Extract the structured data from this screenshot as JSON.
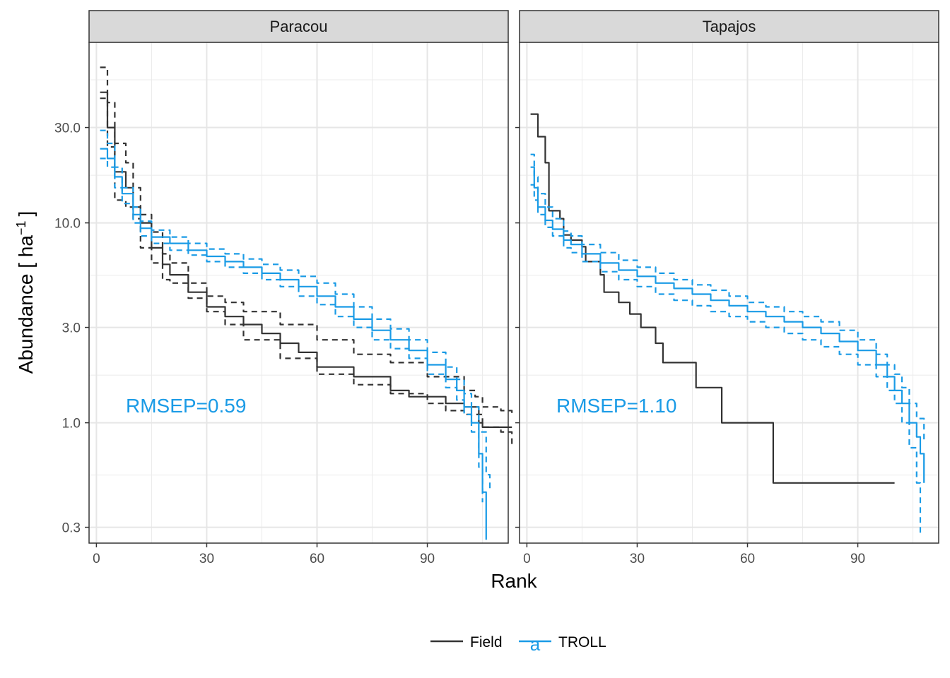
{
  "chart_data": {
    "type": "line",
    "facet_variable": "site",
    "y_scale": "log10",
    "grid": true,
    "legend_position": "bottom",
    "xlabel": "Rank",
    "ylabel": "Abundance [ ha",
    "ylabel_superscript": "−1",
    "ylabel_close": "]",
    "xlim": [
      -2,
      112
    ],
    "ylim": [
      0.25,
      80
    ],
    "x_ticks": [
      0,
      30,
      60,
      90
    ],
    "x_tick_labels": [
      "0",
      "30",
      "60",
      "90"
    ],
    "y_ticks": [
      0.3,
      1.0,
      3.0,
      10.0,
      30.0
    ],
    "y_tick_labels": [
      "0.3",
      "1.0",
      "3.0",
      "10.0",
      "30.0"
    ],
    "legend": [
      {
        "name": "Field",
        "color": "#333333",
        "glyph": ""
      },
      {
        "name": "TROLL",
        "color": "#1a9be6",
        "glyph": "a"
      }
    ],
    "panels": [
      {
        "facet": "Paracou",
        "annotation": "RMSEP=0.59",
        "series": [
          {
            "name": "Field",
            "style": "solid",
            "x": [
              1,
              3,
              5,
              8,
              10,
              12,
              15,
              18,
              20,
              25,
              30,
              35,
              40,
              45,
              50,
              55,
              60,
              70,
              80,
              85,
              95,
              100,
              103,
              104,
              105,
              110,
              113
            ],
            "y": [
              45,
              30,
              18,
              15,
              12,
              10,
              7.5,
              6.2,
              5.5,
              4.5,
              3.8,
              3.4,
              3.1,
              2.8,
              2.5,
              2.25,
              1.9,
              1.7,
              1.45,
              1.35,
              1.25,
              1.2,
              1.2,
              1.0,
              0.95,
              0.95,
              0.95
            ]
          },
          {
            "name": "Field",
            "style": "dashed",
            "x": [
              1,
              3,
              5,
              8,
              10,
              12,
              15,
              18,
              20,
              25,
              30,
              35,
              40,
              50,
              60,
              70,
              80,
              90,
              100,
              103,
              105,
              110,
              113
            ],
            "y": [
              60,
              40,
              25,
              20,
              15,
              11,
              9,
              7,
              6.3,
              5,
              4.3,
              4,
              3.6,
              3.1,
              2.6,
              2.2,
              2.0,
              1.7,
              1.45,
              1.35,
              1.2,
              1.15,
              1.1
            ]
          },
          {
            "name": "Field",
            "style": "dashed",
            "x": [
              1,
              3,
              5,
              8,
              10,
              12,
              15,
              18,
              20,
              25,
              30,
              35,
              40,
              50,
              60,
              70,
              80,
              90,
              95,
              100,
              103,
              105,
              110,
              113
            ],
            "y": [
              42,
              24,
              13,
              12,
              10.5,
              7.5,
              6.3,
              5.2,
              5,
              4.2,
              3.6,
              3.1,
              2.6,
              2.1,
              1.75,
              1.55,
              1.4,
              1.25,
              1.15,
              1.1,
              1.1,
              0.95,
              0.9,
              0.78
            ]
          },
          {
            "name": "TROLL",
            "style": "solid",
            "x": [
              1,
              3,
              5,
              7,
              10,
              12,
              15,
              20,
              25,
              30,
              35,
              40,
              45,
              50,
              55,
              60,
              65,
              70,
              75,
              80,
              85,
              90,
              95,
              98,
              100,
              102,
              104,
              105,
              106
            ],
            "y": [
              23.5,
              21,
              17,
              14,
              11,
              9.4,
              8.5,
              7.9,
              7.3,
              6.8,
              6.4,
              6,
              5.6,
              5.2,
              4.8,
              4.3,
              3.8,
              3.3,
              2.9,
              2.6,
              2.3,
              1.95,
              1.65,
              1.45,
              1.2,
              1.0,
              0.7,
              0.45,
              0.26
            ]
          },
          {
            "name": "TROLL",
            "style": "dashed",
            "x": [
              1,
              3,
              5,
              7,
              10,
              12,
              15,
              20,
              25,
              30,
              35,
              40,
              45,
              50,
              55,
              60,
              65,
              70,
              75,
              80,
              85,
              90,
              95,
              98,
              100,
              102,
              104,
              106,
              107
            ],
            "y": [
              29,
              25,
              19,
              15,
              12,
              10.2,
              9.2,
              8.5,
              7.9,
              7.4,
              7,
              6.6,
              6.2,
              5.8,
              5.4,
              5,
              4.4,
              3.8,
              3.3,
              2.95,
              2.6,
              2.25,
              1.9,
              1.65,
              1.4,
              1.2,
              0.9,
              0.55,
              0.45
            ]
          },
          {
            "name": "TROLL",
            "style": "dashed",
            "x": [
              1,
              3,
              5,
              7,
              10,
              12,
              15,
              20,
              25,
              30,
              35,
              40,
              45,
              50,
              55,
              60,
              65,
              70,
              75,
              80,
              85,
              90,
              95,
              98,
              100,
              102,
              104,
              105
            ],
            "y": [
              21,
              19,
              15,
              12.5,
              10,
              8.6,
              7.9,
              7.3,
              6.9,
              6.4,
              6,
              5.6,
              5.2,
              4.8,
              4.3,
              3.9,
              3.4,
              3,
              2.6,
              2.35,
              2.1,
              1.75,
              1.5,
              1.3,
              1.1,
              0.9,
              0.6,
              0.4
            ]
          }
        ]
      },
      {
        "facet": "Tapajos",
        "annotation": "RMSEP=1.10",
        "series": [
          {
            "name": "Field",
            "style": "solid",
            "x": [
              1,
              3,
              5,
              6,
              7,
              9,
              10,
              12,
              15,
              16,
              19,
              20,
              21,
              22,
              24,
              25,
              27,
              28,
              30,
              31,
              32,
              33,
              35,
              36,
              37,
              39,
              40,
              45,
              46,
              47,
              48,
              52,
              53,
              54,
              60,
              65,
              66,
              67,
              68,
              80,
              95,
              100
            ],
            "y": [
              35,
              27,
              20,
              11.5,
              11.5,
              10.5,
              8.7,
              8.2,
              7.6,
              6.4,
              6.4,
              5.5,
              4.5,
              4.5,
              4.5,
              4.0,
              4.0,
              3.5,
              3.5,
              3.0,
              3.0,
              3.0,
              2.5,
              2.5,
              2.0,
              2.0,
              2.0,
              2.0,
              1.5,
              1.5,
              1.5,
              1.5,
              1.0,
              1.0,
              1.0,
              1.0,
              1.0,
              0.5,
              0.5,
              0.5,
              0.5,
              0.5
            ]
          },
          {
            "name": "TROLL",
            "style": "solid",
            "x": [
              1,
              2,
              3,
              5,
              7,
              10,
              12,
              15,
              20,
              25,
              30,
              35,
              40,
              45,
              50,
              55,
              60,
              65,
              70,
              75,
              80,
              85,
              90,
              95,
              98,
              100,
              102,
              104,
              106,
              107,
              108
            ],
            "y": [
              19,
              15,
              12,
              10.3,
              9.3,
              8.2,
              7.8,
              7,
              6.3,
              5.8,
              5.4,
              5,
              4.7,
              4.4,
              4.1,
              3.85,
              3.6,
              3.4,
              3.2,
              3.0,
              2.8,
              2.55,
              2.3,
              1.95,
              1.7,
              1.45,
              1.25,
              1.0,
              0.85,
              0.7,
              0.5
            ]
          },
          {
            "name": "TROLL",
            "style": "dashed",
            "x": [
              1,
              2,
              3,
              5,
              7,
              10,
              12,
              15,
              20,
              25,
              30,
              35,
              40,
              45,
              50,
              55,
              60,
              65,
              70,
              75,
              80,
              85,
              90,
              95,
              98,
              100,
              102,
              104,
              106,
              108
            ],
            "y": [
              22,
              17,
              14,
              12,
              10.5,
              9.1,
              8.6,
              7.8,
              7.1,
              6.5,
              6,
              5.6,
              5.2,
              4.9,
              4.6,
              4.3,
              4.0,
              3.8,
              3.6,
              3.4,
              3.2,
              2.9,
              2.6,
              2.2,
              1.95,
              1.75,
              1.5,
              1.25,
              1.05,
              0.8
            ]
          },
          {
            "name": "TROLL",
            "style": "dashed",
            "x": [
              1,
              2,
              3,
              5,
              7,
              10,
              12,
              15,
              20,
              25,
              30,
              35,
              40,
              45,
              50,
              55,
              60,
              65,
              70,
              75,
              80,
              85,
              90,
              95,
              98,
              100,
              102,
              104,
              106,
              107
            ],
            "y": [
              15.5,
              13,
              11,
              9.5,
              8.6,
              7.5,
              7.1,
              6.4,
              5.7,
              5.2,
              4.8,
              4.4,
              4.1,
              3.85,
              3.6,
              3.4,
              3.2,
              3.0,
              2.8,
              2.6,
              2.4,
              2.2,
              1.95,
              1.7,
              1.45,
              1.25,
              1.0,
              0.75,
              0.5,
              0.27
            ]
          }
        ]
      }
    ]
  }
}
